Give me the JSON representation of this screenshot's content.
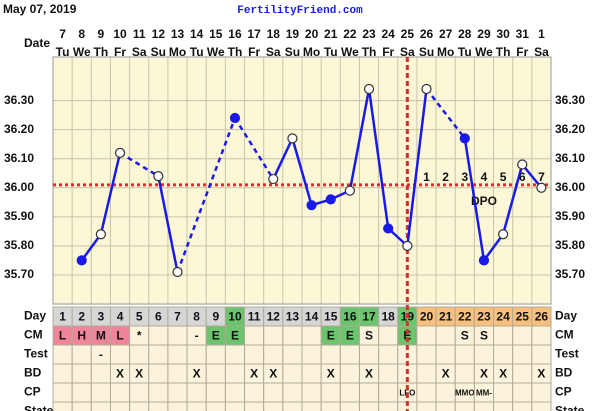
{
  "header": {
    "date": "May 07, 2019",
    "site": "FertilityFriend.com"
  },
  "chart_data": {
    "type": "line",
    "x_label": "Date",
    "categories": [
      "7",
      "8",
      "9",
      "10",
      "11",
      "12",
      "13",
      "14",
      "15",
      "16",
      "17",
      "18",
      "19",
      "20",
      "21",
      "22",
      "23",
      "24",
      "25",
      "26",
      "27",
      "28",
      "29",
      "30",
      "31",
      "1"
    ],
    "weekdays": [
      "Tu",
      "We",
      "Th",
      "Fr",
      "Sa",
      "Su",
      "Mo",
      "Tu",
      "We",
      "Th",
      "Fr",
      "Sa",
      "Su",
      "Mo",
      "Tu",
      "We",
      "Th",
      "Fr",
      "Sa",
      "Su",
      "Mo",
      "Tu",
      "We",
      "Th",
      "Fr",
      "Sa"
    ],
    "values": [
      null,
      35.75,
      35.84,
      36.12,
      null,
      36.04,
      35.71,
      null,
      null,
      36.24,
      null,
      36.03,
      36.17,
      35.94,
      35.96,
      35.99,
      36.34,
      35.86,
      35.8,
      36.34,
      null,
      36.17,
      35.75,
      35.84,
      36.08,
      36.0
    ],
    "open": [
      false,
      false,
      true,
      true,
      false,
      true,
      true,
      false,
      false,
      false,
      false,
      true,
      true,
      false,
      false,
      true,
      true,
      false,
      true,
      true,
      false,
      false,
      false,
      true,
      true,
      true
    ],
    "color": "#1a1ae6",
    "ylim": [
      35.6,
      36.45
    ],
    "yticks": [
      {
        "value": 35.7,
        "label": "35.70"
      },
      {
        "value": 35.8,
        "label": "35.80"
      },
      {
        "value": 35.9,
        "label": "35.90"
      },
      {
        "value": 36.0,
        "label": "36.00"
      },
      {
        "value": 36.1,
        "label": "36.10"
      },
      {
        "value": 36.2,
        "label": "36.20"
      },
      {
        "value": 36.3,
        "label": "36.30"
      }
    ],
    "coverline": {
      "value": 36.01,
      "color": "#d9302c"
    },
    "ovulation_day": 19,
    "dpo": {
      "label": "DPO",
      "values": [
        1,
        2,
        3,
        4,
        5,
        6,
        7
      ]
    }
  },
  "table": {
    "rows": [
      {
        "label": "Day",
        "cells": [
          1,
          2,
          3,
          4,
          5,
          6,
          7,
          8,
          9,
          10,
          11,
          12,
          13,
          14,
          15,
          16,
          17,
          18,
          19,
          20,
          21,
          22,
          23,
          24,
          25,
          26
        ],
        "colors": [
          "#d6d6d6",
          "#d6d6d6",
          "#d6d6d6",
          "#d6d6d6",
          "#d6d6d6",
          "#d6d6d6",
          "#d6d6d6",
          "#d6d6d6",
          "#d6d6d6",
          "#6cc46c",
          "#d6d6d6",
          "#d6d6d6",
          "#d6d6d6",
          "#d6d6d6",
          "#d6d6d6",
          "#6cc46c",
          "#6cc46c",
          "#d6d6d6",
          "#6cc46c",
          "#f7c07e",
          "#f7c07e",
          "#f7c07e",
          "#f7c07e",
          "#f7c07e",
          "#f7c07e",
          "#f7c07e"
        ]
      },
      {
        "label": "CM",
        "cells": [
          "L",
          "H",
          "M",
          "L",
          "*",
          null,
          null,
          "-",
          "E",
          "E",
          null,
          null,
          null,
          null,
          "E",
          "E",
          "S",
          null,
          "E",
          null,
          null,
          "S",
          "S",
          null,
          null,
          null
        ],
        "colors": [
          "#f0849a",
          "#f0849a",
          "#f0849a",
          "#f0849a",
          null,
          null,
          null,
          null,
          "#6cc46c",
          "#6cc46c",
          null,
          null,
          null,
          null,
          "#6cc46c",
          "#6cc46c",
          null,
          null,
          "#6cc46c",
          null,
          null,
          null,
          null,
          null,
          null,
          null
        ]
      },
      {
        "label": "Test",
        "cells": [
          null,
          null,
          "-",
          null,
          null,
          null,
          null,
          null,
          null,
          null,
          null,
          null,
          null,
          null,
          null,
          null,
          null,
          null,
          null,
          null,
          null,
          null,
          null,
          null,
          null,
          null
        ]
      },
      {
        "label": "BD",
        "cells": [
          null,
          null,
          null,
          "X",
          "X",
          null,
          null,
          "X",
          null,
          null,
          "X",
          "X",
          null,
          null,
          "X",
          null,
          "X",
          null,
          null,
          null,
          "X",
          null,
          "X",
          "X",
          null,
          "X"
        ]
      },
      {
        "label": "CP",
        "cells": [
          null,
          null,
          null,
          null,
          null,
          null,
          null,
          null,
          null,
          null,
          null,
          null,
          null,
          null,
          null,
          null,
          null,
          null,
          "LFO",
          null,
          null,
          "MMO",
          "MM-",
          null,
          null,
          null
        ]
      },
      {
        "label": "State",
        "cells": [
          null,
          null,
          null,
          null,
          null,
          null,
          null,
          null,
          null,
          null,
          null,
          null,
          null,
          null,
          null,
          null,
          null,
          null,
          null,
          null,
          null,
          null,
          null,
          null,
          null,
          null
        ]
      }
    ]
  }
}
